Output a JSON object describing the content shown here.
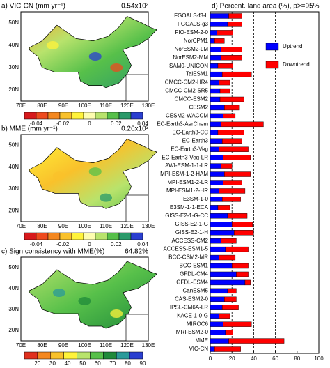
{
  "chart_data": {
    "type": "bar",
    "orientation": "horizontal",
    "stacked": true,
    "title": "d) Percent. land area (%), p>=95%",
    "categories": [
      "FGOALS-f3-L",
      "FGOALS-g3",
      "FIO-ESM-2-0",
      "NorCPM1",
      "NorESM2-LM",
      "NorESM2-MM",
      "SAM0-UNICON",
      "TaiESM1",
      "CMCC-CM2-HR4",
      "CMCC-CM2-SR5",
      "CMCC-ESM2",
      "CESM2",
      "CESM2-WACCM",
      "EC-Earth3-AerChem",
      "EC-Earth3-CC",
      "EC-Earth3",
      "EC-Earth3-Veg",
      "EC-Earth3-Veg-LR",
      "AWI-ESM-1-1-LR",
      "MPI-ESM-1-2-HAM",
      "MPI-ESM1-2-LR",
      "MPI-ESM1-2-HR",
      "E3SM-1-0",
      "E3SM-1-1-ECA",
      "GISS-E2-1-G-CC",
      "GISS-E2-1-G",
      "GISS-E2-1-H",
      "ACCESS-CM2",
      "ACCESS-ESM1-5",
      "BCC-CSM2-MR",
      "BCC-ESM1",
      "GFDL-CM4",
      "GFDL-ESM4",
      "CanESM5",
      "CAS-ESM2-0",
      "IPSL-CM6A-LR",
      "KACE-1-0-G",
      "MIROC6",
      "MRI-ESM2-0",
      "MME",
      "VIC-CN"
    ],
    "series": [
      {
        "name": "Uptrend",
        "color": "#0000ff",
        "values": [
          17,
          16,
          6,
          4,
          10,
          10,
          7,
          11,
          8,
          9,
          9,
          13,
          12,
          10,
          7,
          11,
          8,
          12,
          10,
          13,
          12,
          8,
          11,
          7,
          16,
          20,
          22,
          10,
          14,
          8,
          20,
          24,
          32,
          16,
          13,
          11,
          8,
          12,
          14,
          17,
          4
        ]
      },
      {
        "name": "Downtrend",
        "color": "#ff0000",
        "values": [
          12,
          13,
          15,
          9,
          19,
          19,
          14,
          27,
          10,
          9,
          22,
          14,
          11,
          39,
          24,
          18,
          27,
          25,
          10,
          24,
          17,
          24,
          17,
          11,
          18,
          19,
          18,
          14,
          21,
          15,
          15,
          11,
          5,
          8,
          11,
          15,
          10,
          26,
          7,
          51,
          24
        ]
      }
    ],
    "xlim": [
      0,
      100
    ],
    "xticks": [
      0,
      20,
      40,
      60,
      80,
      100
    ],
    "reference_lines": [
      20,
      40,
      60
    ],
    "legend": "upper right"
  },
  "maps": [
    {
      "title": "a) VIC-CN (mm yr⁻¹)",
      "scale_label": "0.54x10²",
      "colorbar_labels": [
        "-0.04",
        "-0.02",
        "0",
        "0.02",
        "0.04"
      ],
      "colorbar_colors": [
        "#d7191c",
        "#ee4a1e",
        "#f4871f",
        "#f9c12b",
        "#fff33b",
        "#fdfdb0",
        "#b8e36c",
        "#57c04a",
        "#2a9a6a",
        "#2a3fd0"
      ]
    },
    {
      "title": "b) MME (mm yr⁻¹)",
      "scale_label": "0.26x10²",
      "colorbar_labels": [
        "-0.04",
        "-0.02",
        "0",
        "0.02",
        "0.04"
      ],
      "colorbar_colors": [
        "#d7191c",
        "#ee4a1e",
        "#f4871f",
        "#f9c12b",
        "#fff33b",
        "#fdfdb0",
        "#b8e36c",
        "#57c04a",
        "#2a9a6a",
        "#2a3fd0"
      ]
    },
    {
      "title": "c) Sign consistency with MME(%)",
      "scale_label": "64.82%",
      "colorbar_labels": [
        "20",
        "30",
        "40",
        "50",
        "60",
        "70",
        "80",
        "90"
      ],
      "colorbar_colors": [
        "#e0301e",
        "#f4871f",
        "#f9c12b",
        "#fff33b",
        "#b8e36c",
        "#57c04a",
        "#1f8a3a",
        "#2a9a9a",
        "#2a3fd0"
      ]
    }
  ],
  "map_axes": {
    "lat_labels": [
      "50N",
      "40N",
      "30N",
      "20N"
    ],
    "lon_labels": [
      "70E",
      "80E",
      "90E",
      "100E",
      "110E",
      "120E",
      "130E"
    ]
  }
}
